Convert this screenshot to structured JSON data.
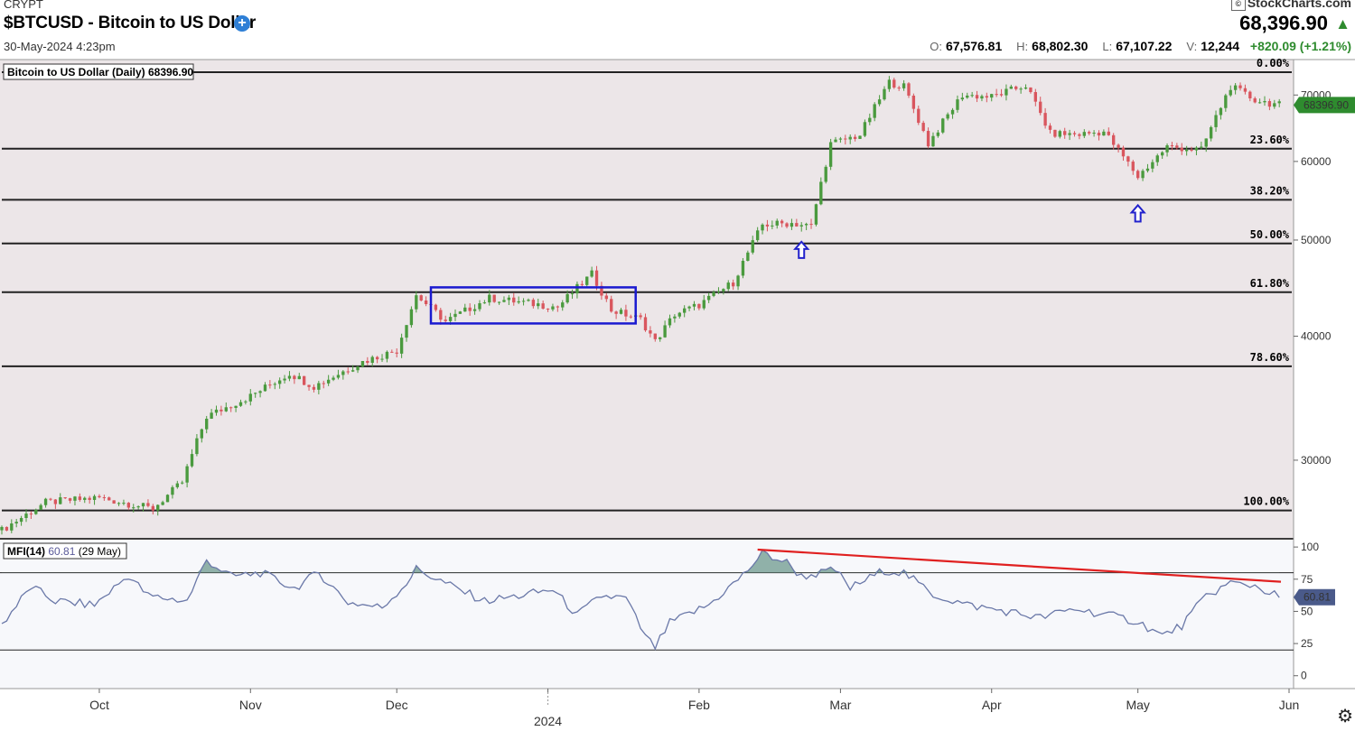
{
  "header": {
    "exchange": "CRYPT",
    "symbol_title": "$BTCUSD - Bitcoin to US Dollar",
    "date": "30-May-2024 4:23pm",
    "brand": "StockCharts.com",
    "last_price": "68,396.90",
    "open_label": "O:",
    "open": "67,576.81",
    "high_label": "H:",
    "high": "68,802.30",
    "low_label": "L:",
    "low": "67,107.22",
    "volume_label": "V:",
    "volume": "12,244",
    "change": "+820.09 (+1.21%)"
  },
  "colors": {
    "up": "#4a9a3e",
    "down": "#d9565e",
    "mfi_line": "#6a78a8",
    "mfi_fill": "#6e9a8e",
    "trend": "#e02020",
    "box": "#1a1ad0",
    "arrow": "#2222cc",
    "panel_bg": "#ece6e8",
    "mfi_bg": "#f7f8fb",
    "price_badge": "#2e8b2e"
  },
  "chart_data": [
    {
      "type": "candlestick",
      "label": "Bitcoin to US Dollar (Daily) 68396.90",
      "y_scale": "log",
      "ylim": [
        25000,
        76000
      ],
      "y_ticks": [
        30000,
        40000,
        50000,
        60000,
        70000
      ],
      "x_ticks": [
        "Oct",
        "Nov",
        "Dec",
        "2024",
        "Feb",
        "Mar",
        "Apr",
        "May",
        "Jun"
      ],
      "last_badge": "68396.90",
      "fib_levels": [
        {
          "label": "0.00%",
          "value": 73800
        },
        {
          "label": "23.60%",
          "value": 61800
        },
        {
          "label": "38.20%",
          "value": 54900
        },
        {
          "label": "50.00%",
          "value": 49600
        },
        {
          "label": "61.80%",
          "value": 44300
        },
        {
          "label": "78.60%",
          "value": 37300
        },
        {
          "label": "100.00%",
          "value": 26700
        }
      ],
      "consolidation_box": {
        "x_start": "2023-12-08",
        "x_end": "2024-01-19",
        "y_low": 41200,
        "y_high": 44800
      },
      "arrows": [
        {
          "date": "2024-02-22",
          "value": 49800
        },
        {
          "date": "2024-05-01",
          "value": 54200
        }
      ],
      "anchors": [
        [
          "2023-09-11",
          25500
        ],
        [
          "2023-09-20",
          27200
        ],
        [
          "2023-10-01",
          27500
        ],
        [
          "2023-10-12",
          26800
        ],
        [
          "2023-10-18",
          28500
        ],
        [
          "2023-10-23",
          33200
        ],
        [
          "2023-11-01",
          34800
        ],
        [
          "2023-11-09",
          36700
        ],
        [
          "2023-11-14",
          35600
        ],
        [
          "2023-11-24",
          37700
        ],
        [
          "2023-12-01",
          38700
        ],
        [
          "2023-12-05",
          44000
        ],
        [
          "2023-12-11",
          41400
        ],
        [
          "2023-12-20",
          43700
        ],
        [
          "2024-01-03",
          42800
        ],
        [
          "2024-01-10",
          46200
        ],
        [
          "2024-01-14",
          42500
        ],
        [
          "2024-01-20",
          41600
        ],
        [
          "2024-01-23",
          39500
        ],
        [
          "2024-01-27",
          42100
        ],
        [
          "2024-02-01",
          43000
        ],
        [
          "2024-02-08",
          45300
        ],
        [
          "2024-02-14",
          51800
        ],
        [
          "2024-02-20",
          52000
        ],
        [
          "2024-02-24",
          51600
        ],
        [
          "2024-02-28",
          62500
        ],
        [
          "2024-03-05",
          63800
        ],
        [
          "2024-03-11",
          72100
        ],
        [
          "2024-03-14",
          71400
        ],
        [
          "2024-03-19",
          62500
        ],
        [
          "2024-03-26",
          70000
        ],
        [
          "2024-04-01",
          69700
        ],
        [
          "2024-04-08",
          71600
        ],
        [
          "2024-04-13",
          64000
        ],
        [
          "2024-04-19",
          63900
        ],
        [
          "2024-04-24",
          64300
        ],
        [
          "2024-05-01",
          57900
        ],
        [
          "2024-05-07",
          62100
        ],
        [
          "2024-05-14",
          61600
        ],
        [
          "2024-05-20",
          71400
        ],
        [
          "2024-05-25",
          69200
        ],
        [
          "2024-05-30",
          68397
        ]
      ]
    },
    {
      "type": "line",
      "label": "MFI(14)",
      "value_label": "60.81",
      "date_label": "(29 May)",
      "ylim": [
        -10,
        105
      ],
      "y_ticks": [
        0,
        25,
        50,
        75,
        100
      ],
      "bands": [
        20,
        80
      ],
      "last_badge": "60.81",
      "trendline": [
        [
          "2024-02-13",
          98
        ],
        [
          "2024-05-30",
          73
        ]
      ],
      "anchors": [
        [
          "2023-09-11",
          40
        ],
        [
          "2023-09-17",
          69
        ],
        [
          "2023-09-22",
          58
        ],
        [
          "2023-09-30",
          55
        ],
        [
          "2023-10-07",
          78
        ],
        [
          "2023-10-11",
          62
        ],
        [
          "2023-10-19",
          58
        ],
        [
          "2023-10-23",
          90
        ],
        [
          "2023-10-28",
          77
        ],
        [
          "2023-11-03",
          80
        ],
        [
          "2023-11-10",
          68
        ],
        [
          "2023-11-15",
          80
        ],
        [
          "2023-11-21",
          57
        ],
        [
          "2023-11-28",
          53
        ],
        [
          "2023-12-03",
          72
        ],
        [
          "2023-12-05",
          83
        ],
        [
          "2023-12-12",
          70
        ],
        [
          "2023-12-19",
          58
        ],
        [
          "2023-12-26",
          62
        ],
        [
          "2024-01-02",
          67
        ],
        [
          "2024-01-07",
          47
        ],
        [
          "2024-01-12",
          62
        ],
        [
          "2024-01-17",
          60
        ],
        [
          "2024-01-21",
          30
        ],
        [
          "2024-01-23",
          22
        ],
        [
          "2024-01-26",
          41
        ],
        [
          "2024-02-03",
          55
        ],
        [
          "2024-02-10",
          78
        ],
        [
          "2024-02-14",
          95
        ],
        [
          "2024-02-19",
          88
        ],
        [
          "2024-02-22",
          77
        ],
        [
          "2024-02-29",
          82
        ],
        [
          "2024-03-03",
          68
        ],
        [
          "2024-03-10",
          82
        ],
        [
          "2024-03-14",
          80
        ],
        [
          "2024-03-20",
          63
        ],
        [
          "2024-03-27",
          55
        ],
        [
          "2024-04-04",
          50
        ],
        [
          "2024-04-11",
          45
        ],
        [
          "2024-04-18",
          52
        ],
        [
          "2024-04-25",
          47
        ],
        [
          "2024-05-01",
          42
        ],
        [
          "2024-05-06",
          31
        ],
        [
          "2024-05-10",
          39
        ],
        [
          "2024-05-15",
          62
        ],
        [
          "2024-05-20",
          72
        ],
        [
          "2024-05-25",
          70
        ],
        [
          "2024-05-30",
          61
        ]
      ]
    }
  ]
}
